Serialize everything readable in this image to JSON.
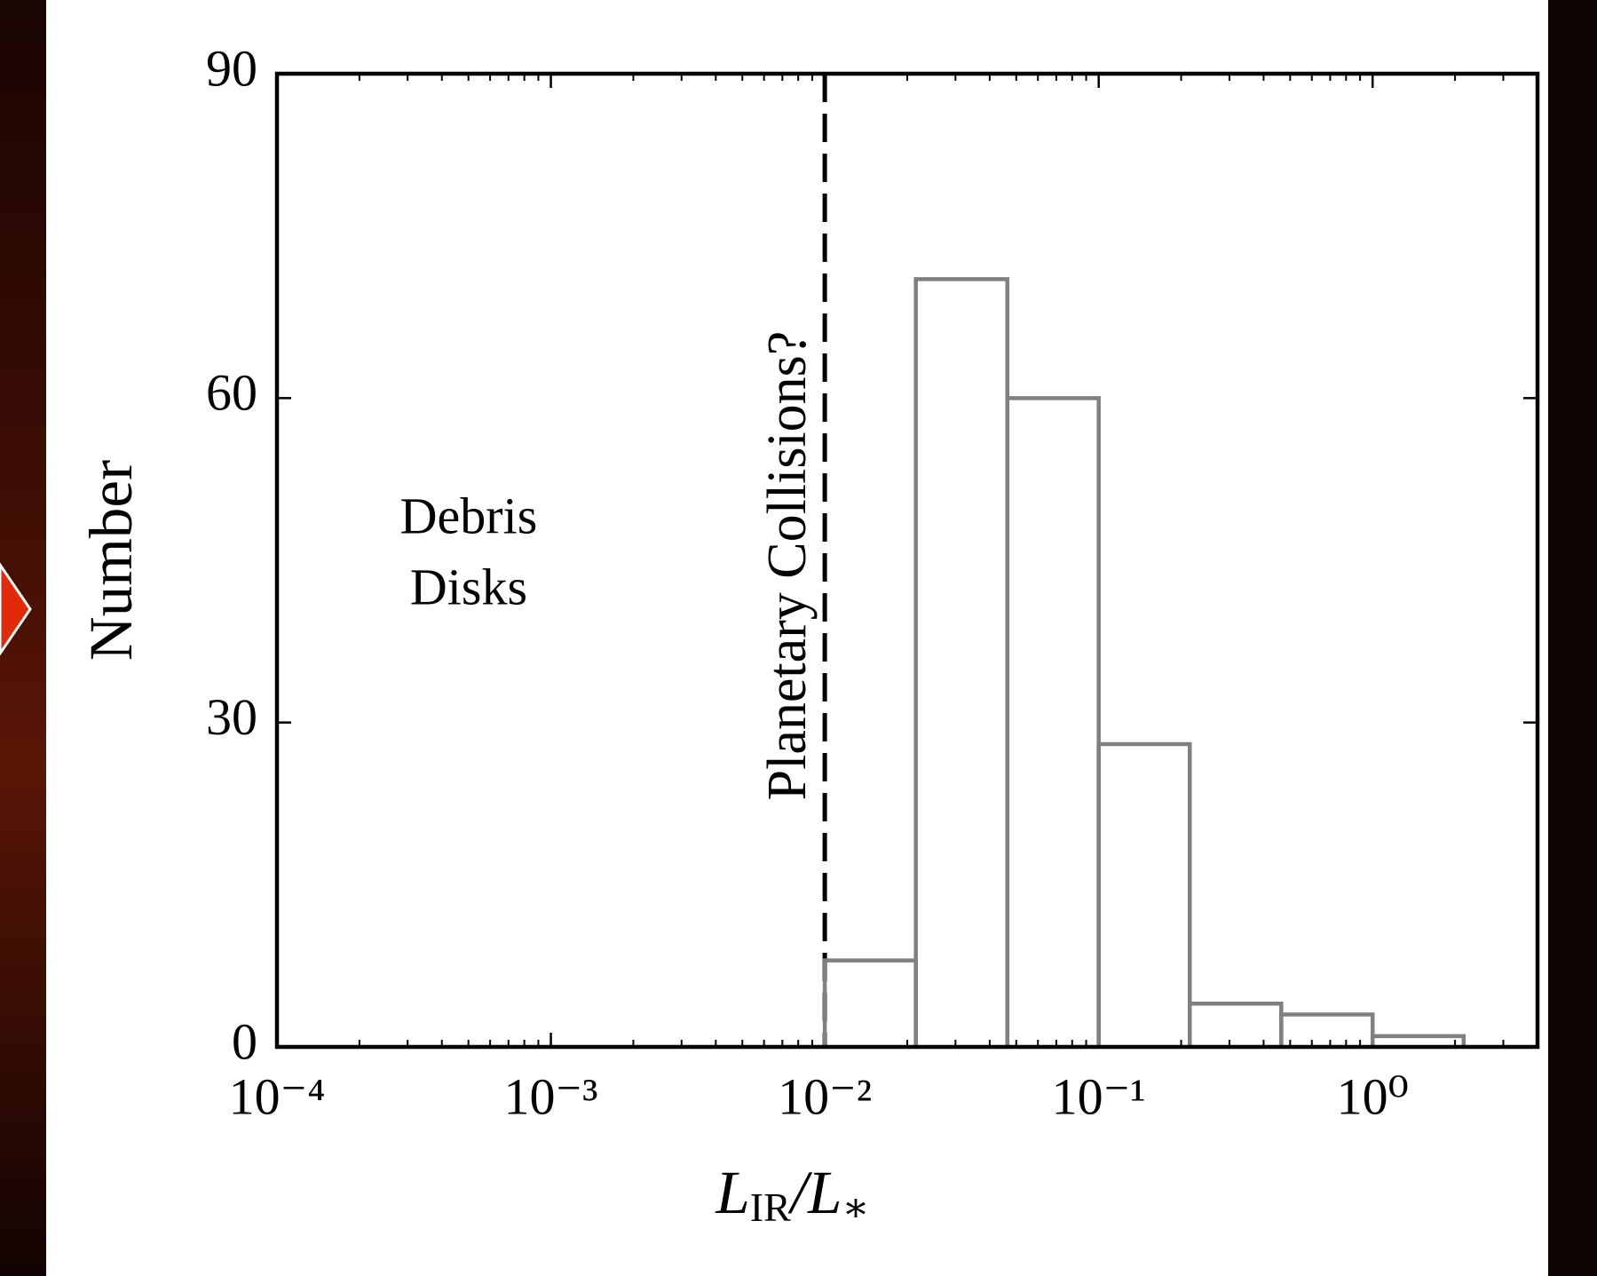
{
  "chart_data": {
    "type": "histogram",
    "bins": [
      0.01,
      0.0215,
      0.0464,
      0.1,
      0.215,
      0.464,
      1,
      2.15
    ],
    "values": [
      8,
      71,
      60,
      28,
      4,
      3,
      1
    ],
    "color": "#808080",
    "xscale": "log",
    "xlim": [
      0.0001,
      4
    ],
    "xticks": [
      {
        "value": 0.0001,
        "label": "10⁻⁴"
      },
      {
        "value": 0.001,
        "label": "10⁻³"
      },
      {
        "value": 0.01,
        "label": "10⁻²"
      },
      {
        "value": 0.1,
        "label": "10⁻¹"
      },
      {
        "value": 1,
        "label": "10⁰"
      }
    ],
    "ylim": [
      0,
      90
    ],
    "yticks": [
      0,
      30,
      60,
      90
    ],
    "xlabel": [
      "L",
      "IR",
      "/L",
      "∗"
    ],
    "ylabel": "Number",
    "reference_line": {
      "x": 0.01,
      "style": "dashed",
      "color": "#000000"
    },
    "annotations": [
      "Debris",
      "Disks",
      "Planetary Collisions?"
    ]
  }
}
